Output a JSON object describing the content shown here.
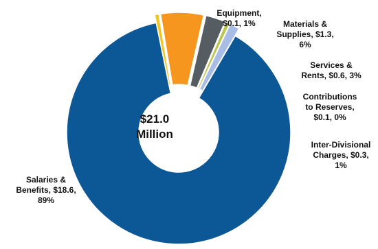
{
  "chart_data": {
    "type": "pie",
    "donut": true,
    "center_label": [
      "$21.0",
      "Million"
    ],
    "slices": [
      {
        "label": "Equipment",
        "value": 0.1,
        "percent": 1,
        "color": "#f2c41f",
        "exploded": true,
        "text": [
          "Equipment,",
          "$0.1, 1%"
        ]
      },
      {
        "label": "Materials & Supplies",
        "value": 1.3,
        "percent": 6,
        "color": "#f6961e",
        "exploded": true,
        "text": [
          "Materials &",
          "Supplies, $1.3,",
          "6%"
        ]
      },
      {
        "label": "Services & Rents",
        "value": 0.6,
        "percent": 3,
        "color": "#555d63",
        "exploded": true,
        "text": [
          "Services &",
          "Rents, $0.6, 3%"
        ]
      },
      {
        "label": "Contributions to Reserves",
        "value": 0.1,
        "percent": 0,
        "color": "#b7c64b",
        "exploded": true,
        "text": [
          "Contributions",
          "to Reserves,",
          "$0.1, 0%"
        ]
      },
      {
        "label": "Inter-Divisional Charges",
        "value": 0.3,
        "percent": 1,
        "color": "#a7bde5",
        "exploded": true,
        "text": [
          "Inter-Divisional",
          "Charges, $0.3,",
          "1%"
        ]
      },
      {
        "label": "Salaries & Benefits",
        "value": 18.6,
        "percent": 89,
        "color": "#0c5896",
        "exploded": false,
        "text": [
          "Salaries &",
          "Benefits, $18.6,",
          "89%"
        ]
      }
    ]
  }
}
